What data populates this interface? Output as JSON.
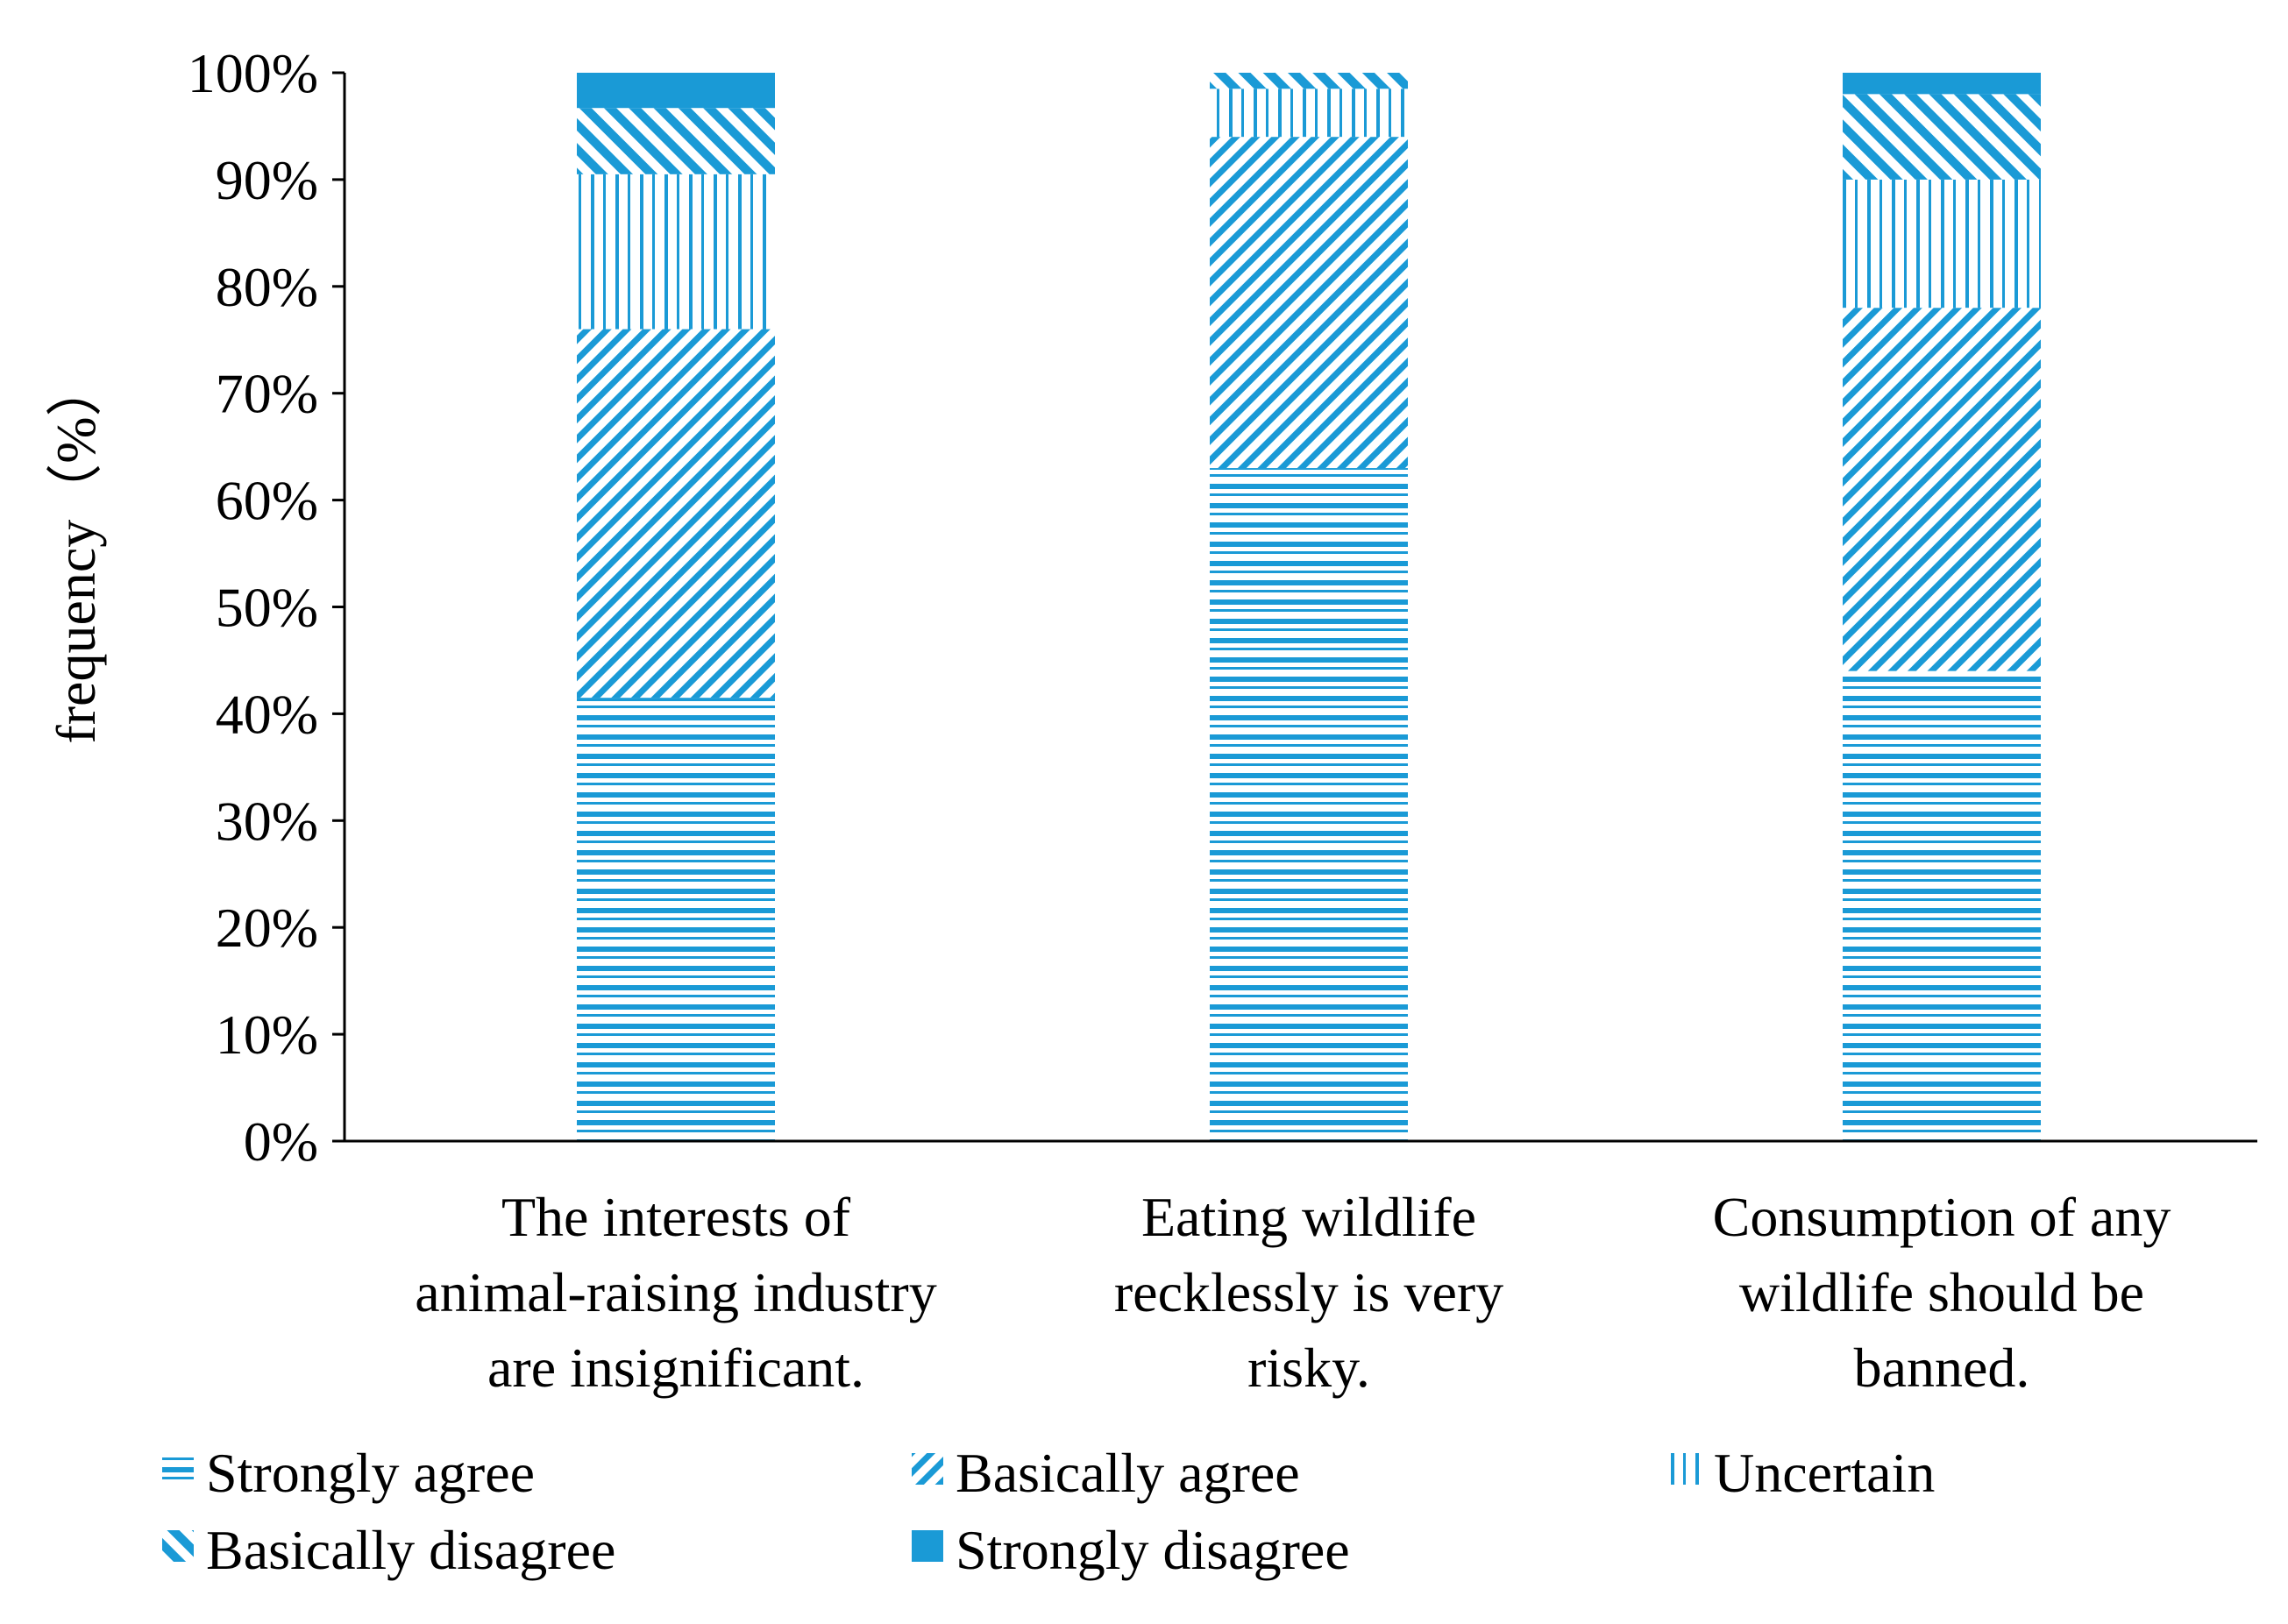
{
  "chart_data": {
    "type": "bar",
    "stacked": true,
    "title": "",
    "xlabel": "",
    "ylabel": "frequency（%）",
    "ylim": [
      0,
      100
    ],
    "yticks": [
      "0%",
      "10%",
      "20%",
      "30%",
      "40%",
      "50%",
      "60%",
      "70%",
      "80%",
      "90%",
      "100%"
    ],
    "categories": [
      [
        "The interests of",
        "animal-raising industry",
        "are insignificant."
      ],
      [
        "Eating wildlife",
        "recklessly is very",
        "risky."
      ],
      [
        "Consumption of any",
        "wildlife should be",
        "banned."
      ]
    ],
    "series": [
      {
        "name": "Strongly agree",
        "pattern": "horizontal",
        "values": [
          41.5,
          63.0,
          44.0
        ]
      },
      {
        "name": "Basically agree",
        "pattern": "diag-left",
        "values": [
          34.5,
          31.0,
          34.0
        ]
      },
      {
        "name": "Uncertain",
        "pattern": "vertical",
        "values": [
          14.5,
          4.5,
          12.0
        ]
      },
      {
        "name": "Basically disagree",
        "pattern": "diag-right",
        "values": [
          6.2,
          1.5,
          8.0
        ]
      },
      {
        "name": "Strongly disagree",
        "pattern": "solid",
        "values": [
          3.3,
          0.0,
          2.0
        ]
      }
    ],
    "legend_position": "bottom",
    "colors": {
      "bar": "#1a9ad6",
      "axis": "#000000"
    }
  }
}
